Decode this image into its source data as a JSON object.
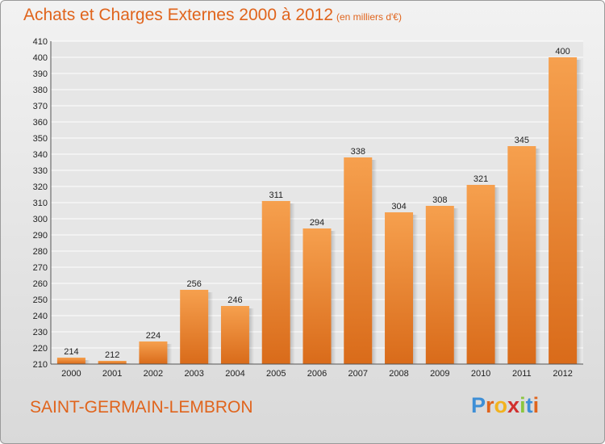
{
  "chart_data": {
    "type": "bar",
    "title": "Achats et Charges Externes 2000 à 2012",
    "subtitle": "(en milliers d'€)",
    "categories": [
      "2000",
      "2001",
      "2002",
      "2003",
      "2004",
      "2005",
      "2006",
      "2007",
      "2008",
      "2009",
      "2010",
      "2011",
      "2012"
    ],
    "values": [
      214,
      212,
      224,
      256,
      246,
      311,
      294,
      338,
      304,
      308,
      321,
      345,
      400
    ],
    "ylim": [
      210,
      410
    ],
    "yticks": [
      210,
      220,
      230,
      240,
      250,
      260,
      270,
      280,
      290,
      300,
      310,
      320,
      330,
      340,
      350,
      360,
      370,
      380,
      390,
      400,
      410
    ],
    "grid": true,
    "bar_color": "#f28c34",
    "bar_color_dark": "#d96b1a"
  },
  "footer": {
    "commune": "SAINT-GERMAIN-LEMBRON",
    "logo_letters": [
      "P",
      "r",
      "o",
      "x",
      "i",
      "t",
      "i"
    ],
    "logo_colors": [
      "#3e8fd6",
      "#e0641c",
      "#f2b21e",
      "#d1302e",
      "#8cc63f",
      "#3e8fd6",
      "#e0641c"
    ]
  }
}
